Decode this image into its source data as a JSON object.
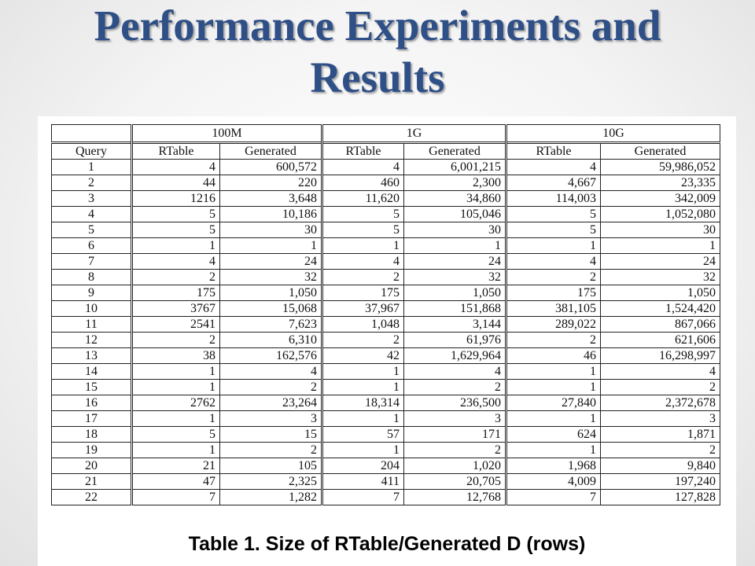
{
  "title": {
    "line1": "Performance Experiments and",
    "line2": "Results"
  },
  "table": {
    "groups": [
      "100M",
      "1G",
      "10G"
    ],
    "columns": [
      "Query",
      "RTable",
      "Generated",
      "RTable",
      "Generated",
      "RTable",
      "Generated"
    ],
    "rows": [
      [
        "1",
        "4",
        "600,572",
        "4",
        "6,001,215",
        "4",
        "59,986,052"
      ],
      [
        "2",
        "44",
        "220",
        "460",
        "2,300",
        "4,667",
        "23,335"
      ],
      [
        "3",
        "1216",
        "3,648",
        "11,620",
        "34,860",
        "114,003",
        "342,009"
      ],
      [
        "4",
        "5",
        "10,186",
        "5",
        "105,046",
        "5",
        "1,052,080"
      ],
      [
        "5",
        "5",
        "30",
        "5",
        "30",
        "5",
        "30"
      ],
      [
        "6",
        "1",
        "1",
        "1",
        "1",
        "1",
        "1"
      ],
      [
        "7",
        "4",
        "24",
        "4",
        "24",
        "4",
        "24"
      ],
      [
        "8",
        "2",
        "32",
        "2",
        "32",
        "2",
        "32"
      ],
      [
        "9",
        "175",
        "1,050",
        "175",
        "1,050",
        "175",
        "1,050"
      ],
      [
        "10",
        "3767",
        "15,068",
        "37,967",
        "151,868",
        "381,105",
        "1,524,420"
      ],
      [
        "11",
        "2541",
        "7,623",
        "1,048",
        "3,144",
        "289,022",
        "867,066"
      ],
      [
        "12",
        "2",
        "6,310",
        "2",
        "61,976",
        "2",
        "621,606"
      ],
      [
        "13",
        "38",
        "162,576",
        "42",
        "1,629,964",
        "46",
        "16,298,997"
      ],
      [
        "14",
        "1",
        "4",
        "1",
        "4",
        "1",
        "4"
      ],
      [
        "15",
        "1",
        "2",
        "1",
        "2",
        "1",
        "2"
      ],
      [
        "16",
        "2762",
        "23,264",
        "18,314",
        "236,500",
        "27,840",
        "2,372,678"
      ],
      [
        "17",
        "1",
        "3",
        "1",
        "3",
        "1",
        "3"
      ],
      [
        "18",
        "5",
        "15",
        "57",
        "171",
        "624",
        "1,871"
      ],
      [
        "19",
        "1",
        "2",
        "1",
        "2",
        "1",
        "2"
      ],
      [
        "20",
        "21",
        "105",
        "204",
        "1,020",
        "1,968",
        "9,840"
      ],
      [
        "21",
        "47",
        "2,325",
        "411",
        "20,705",
        "4,009",
        "197,240"
      ],
      [
        "22",
        "7",
        "1,282",
        "7",
        "12,768",
        "7",
        "127,828"
      ]
    ]
  },
  "caption": "Table 1. Size of RTable/Generated D (rows)",
  "colors": {
    "title": "#2f4f87"
  }
}
